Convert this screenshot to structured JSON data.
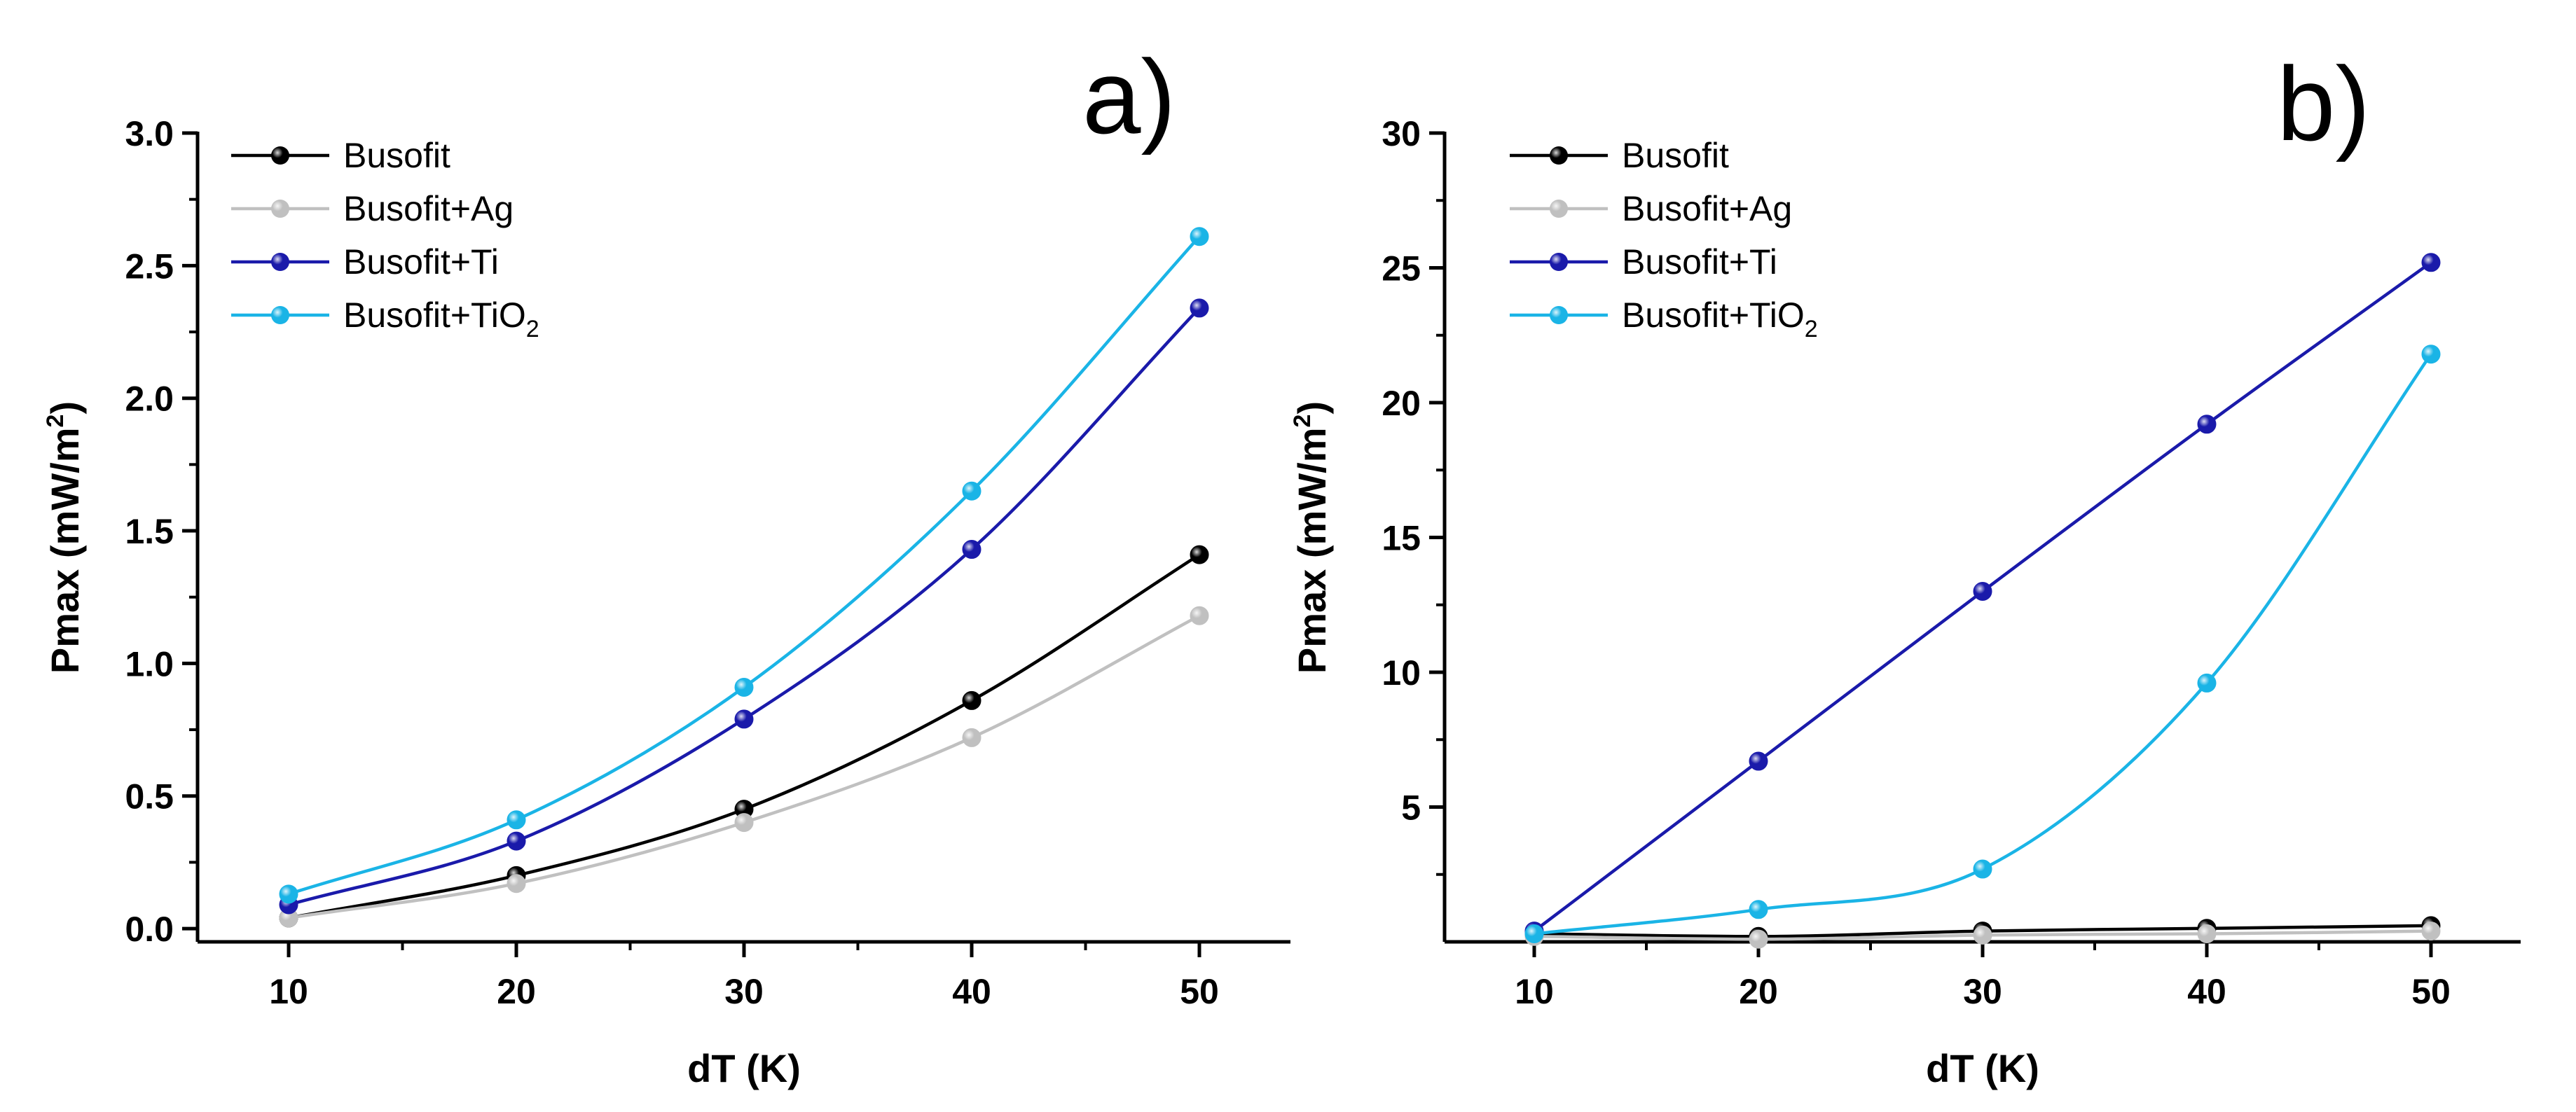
{
  "colors": {
    "Busofit": "#000000",
    "Busofit+Ag": "#c0c0c0",
    "Busofit+Ti": "#1a1aaa",
    "Busofit+TiO2": "#1ab4e6"
  },
  "chart_data": [
    {
      "type": "line",
      "panel_label": "a)",
      "xlabel": "dT (K)",
      "ylabel_prefix": "Pmax (mW/m",
      "ylabel_sup": "2",
      "ylabel_suffix": ")",
      "xlim": [
        6,
        54
      ],
      "ylim": [
        -0.05,
        3.0
      ],
      "xticks": [
        10,
        20,
        30,
        40,
        50
      ],
      "xtick_labels": [
        "10",
        "20",
        "30",
        "40",
        "50"
      ],
      "yticks": [
        0.0,
        0.5,
        1.0,
        1.5,
        2.0,
        2.5,
        3.0
      ],
      "ytick_labels": [
        "0.0",
        "0.5",
        "1.0",
        "1.5",
        "2.0",
        "2.5",
        "3.0"
      ],
      "legend_position": "top-left",
      "x": [
        10,
        20,
        30,
        40,
        50
      ],
      "series": [
        {
          "name": "Busofit",
          "color_key": "Busofit",
          "values": [
            0.04,
            0.2,
            0.45,
            0.86,
            1.41
          ]
        },
        {
          "name": "Busofit+Ag",
          "color_key": "Busofit+Ag",
          "values": [
            0.04,
            0.17,
            0.4,
            0.72,
            1.18
          ]
        },
        {
          "name": "Busofit+Ti",
          "color_key": "Busofit+Ti",
          "values": [
            0.09,
            0.33,
            0.79,
            1.43,
            2.34
          ]
        },
        {
          "name": "Busofit+TiO",
          "name_sub": "2",
          "color_key": "Busofit+TiO2",
          "values": [
            0.13,
            0.41,
            0.91,
            1.65,
            2.61
          ]
        }
      ]
    },
    {
      "type": "line",
      "panel_label": "b)",
      "xlabel": "dT (K)",
      "ylabel_prefix": "Pmax (mW/m",
      "ylabel_sup": "2",
      "ylabel_suffix": ")",
      "xlim": [
        6,
        54
      ],
      "ylim": [
        0,
        30
      ],
      "xticks": [
        10,
        20,
        30,
        40,
        50
      ],
      "xtick_labels": [
        "10",
        "20",
        "30",
        "40",
        "50"
      ],
      "yticks": [
        5,
        10,
        15,
        20,
        25,
        30
      ],
      "ytick_labels": [
        "5",
        "10",
        "15",
        "20",
        "25",
        "30"
      ],
      "legend_position": "top-left",
      "x": [
        10,
        20,
        30,
        40,
        50
      ],
      "series": [
        {
          "name": "Busofit",
          "color_key": "Busofit",
          "values": [
            0.3,
            0.2,
            0.4,
            0.5,
            0.6
          ]
        },
        {
          "name": "Busofit+Ag",
          "color_key": "Busofit+Ag",
          "values": [
            0.2,
            0.1,
            0.25,
            0.3,
            0.4
          ]
        },
        {
          "name": "Busofit+Ti",
          "color_key": "Busofit+Ti",
          "values": [
            0.4,
            6.7,
            13.0,
            19.2,
            25.2
          ]
        },
        {
          "name": "Busofit+TiO",
          "name_sub": "2",
          "color_key": "Busofit+TiO2",
          "values": [
            0.3,
            1.2,
            2.7,
            9.6,
            21.8
          ]
        }
      ]
    }
  ]
}
